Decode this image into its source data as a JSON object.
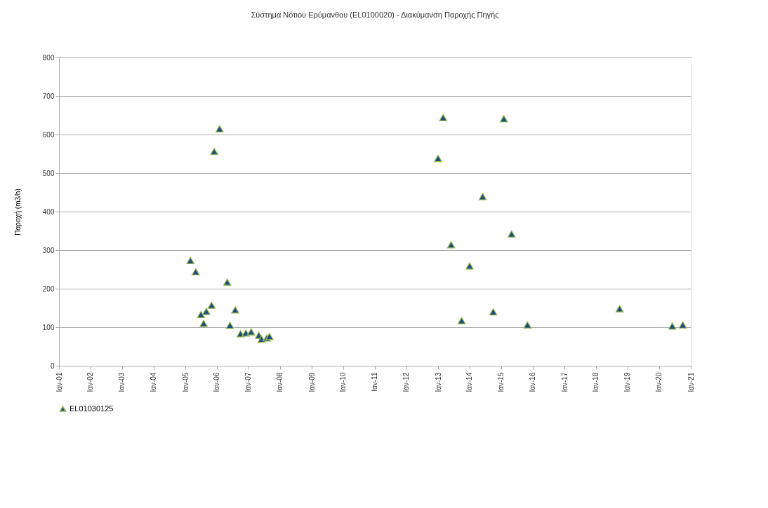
{
  "chart_data": {
    "type": "scatter",
    "title": "Σύστημα Νότιου Ερύμανθου (EL0100020) - Διακύμανση Παροχής Πηγής",
    "ylabel": "Παροχή (m3/h)",
    "x": [
      "2005-03",
      "2005-05",
      "2005-07",
      "2005-08",
      "2005-09",
      "2005-11",
      "2005-12",
      "2006-02",
      "2006-05",
      "2006-06",
      "2006-08",
      "2006-10",
      "2006-12",
      "2007-02",
      "2007-05",
      "2007-06",
      "2007-08",
      "2007-09",
      "2013-01",
      "2013-03",
      "2013-06",
      "2013-10",
      "2014-01",
      "2014-06",
      "2014-10",
      "2015-02",
      "2015-05",
      "2015-11",
      "2018-10",
      "2020-06",
      "2020-10"
    ],
    "series": [
      {
        "name": "EL01030125",
        "color": "#1f4e79",
        "values": [
          273,
          244,
          133,
          110,
          141,
          157,
          556,
          615,
          217,
          105,
          145,
          83,
          85,
          88,
          79,
          69,
          72,
          76,
          538,
          644,
          314,
          117,
          259,
          439,
          140,
          641,
          342,
          106,
          148,
          103,
          106
        ]
      }
    ],
    "xlim": [
      "2001-01",
      "2021-01"
    ],
    "xticks": [
      {
        "value": "2001-01",
        "label": "Ιαν-01"
      },
      {
        "value": "2002-01",
        "label": "Ιαν-02"
      },
      {
        "value": "2003-01",
        "label": "Ιαν-03"
      },
      {
        "value": "2004-01",
        "label": "Ιαν-04"
      },
      {
        "value": "2005-01",
        "label": "Ιαν-05"
      },
      {
        "value": "2006-01",
        "label": "Ιαν-06"
      },
      {
        "value": "2007-01",
        "label": "Ιαν-07"
      },
      {
        "value": "2008-01",
        "label": "Ιαν-08"
      },
      {
        "value": "2009-01",
        "label": "Ιαν-09"
      },
      {
        "value": "2010-01",
        "label": "Ιαν-10"
      },
      {
        "value": "2011-01",
        "label": "Ιαν-11"
      },
      {
        "value": "2012-01",
        "label": "Ιαν-12"
      },
      {
        "value": "2013-01",
        "label": "Ιαν-13"
      },
      {
        "value": "2014-01",
        "label": "Ιαν-14"
      },
      {
        "value": "2015-01",
        "label": "Ιαν-15"
      },
      {
        "value": "2016-01",
        "label": "Ιαν-16"
      },
      {
        "value": "2017-01",
        "label": "Ιαν-17"
      },
      {
        "value": "2018-01",
        "label": "Ιαν-18"
      },
      {
        "value": "2019-01",
        "label": "Ιαν-19"
      },
      {
        "value": "2020-01",
        "label": "Ιαν-20"
      },
      {
        "value": "2021-01",
        "label": "Ιαν-21"
      }
    ],
    "ylim": [
      0,
      800
    ],
    "yticks": [
      0,
      100,
      200,
      300,
      400,
      500,
      600,
      700,
      800
    ],
    "grid": "y",
    "legend": "bottom",
    "marker": "triangle"
  }
}
